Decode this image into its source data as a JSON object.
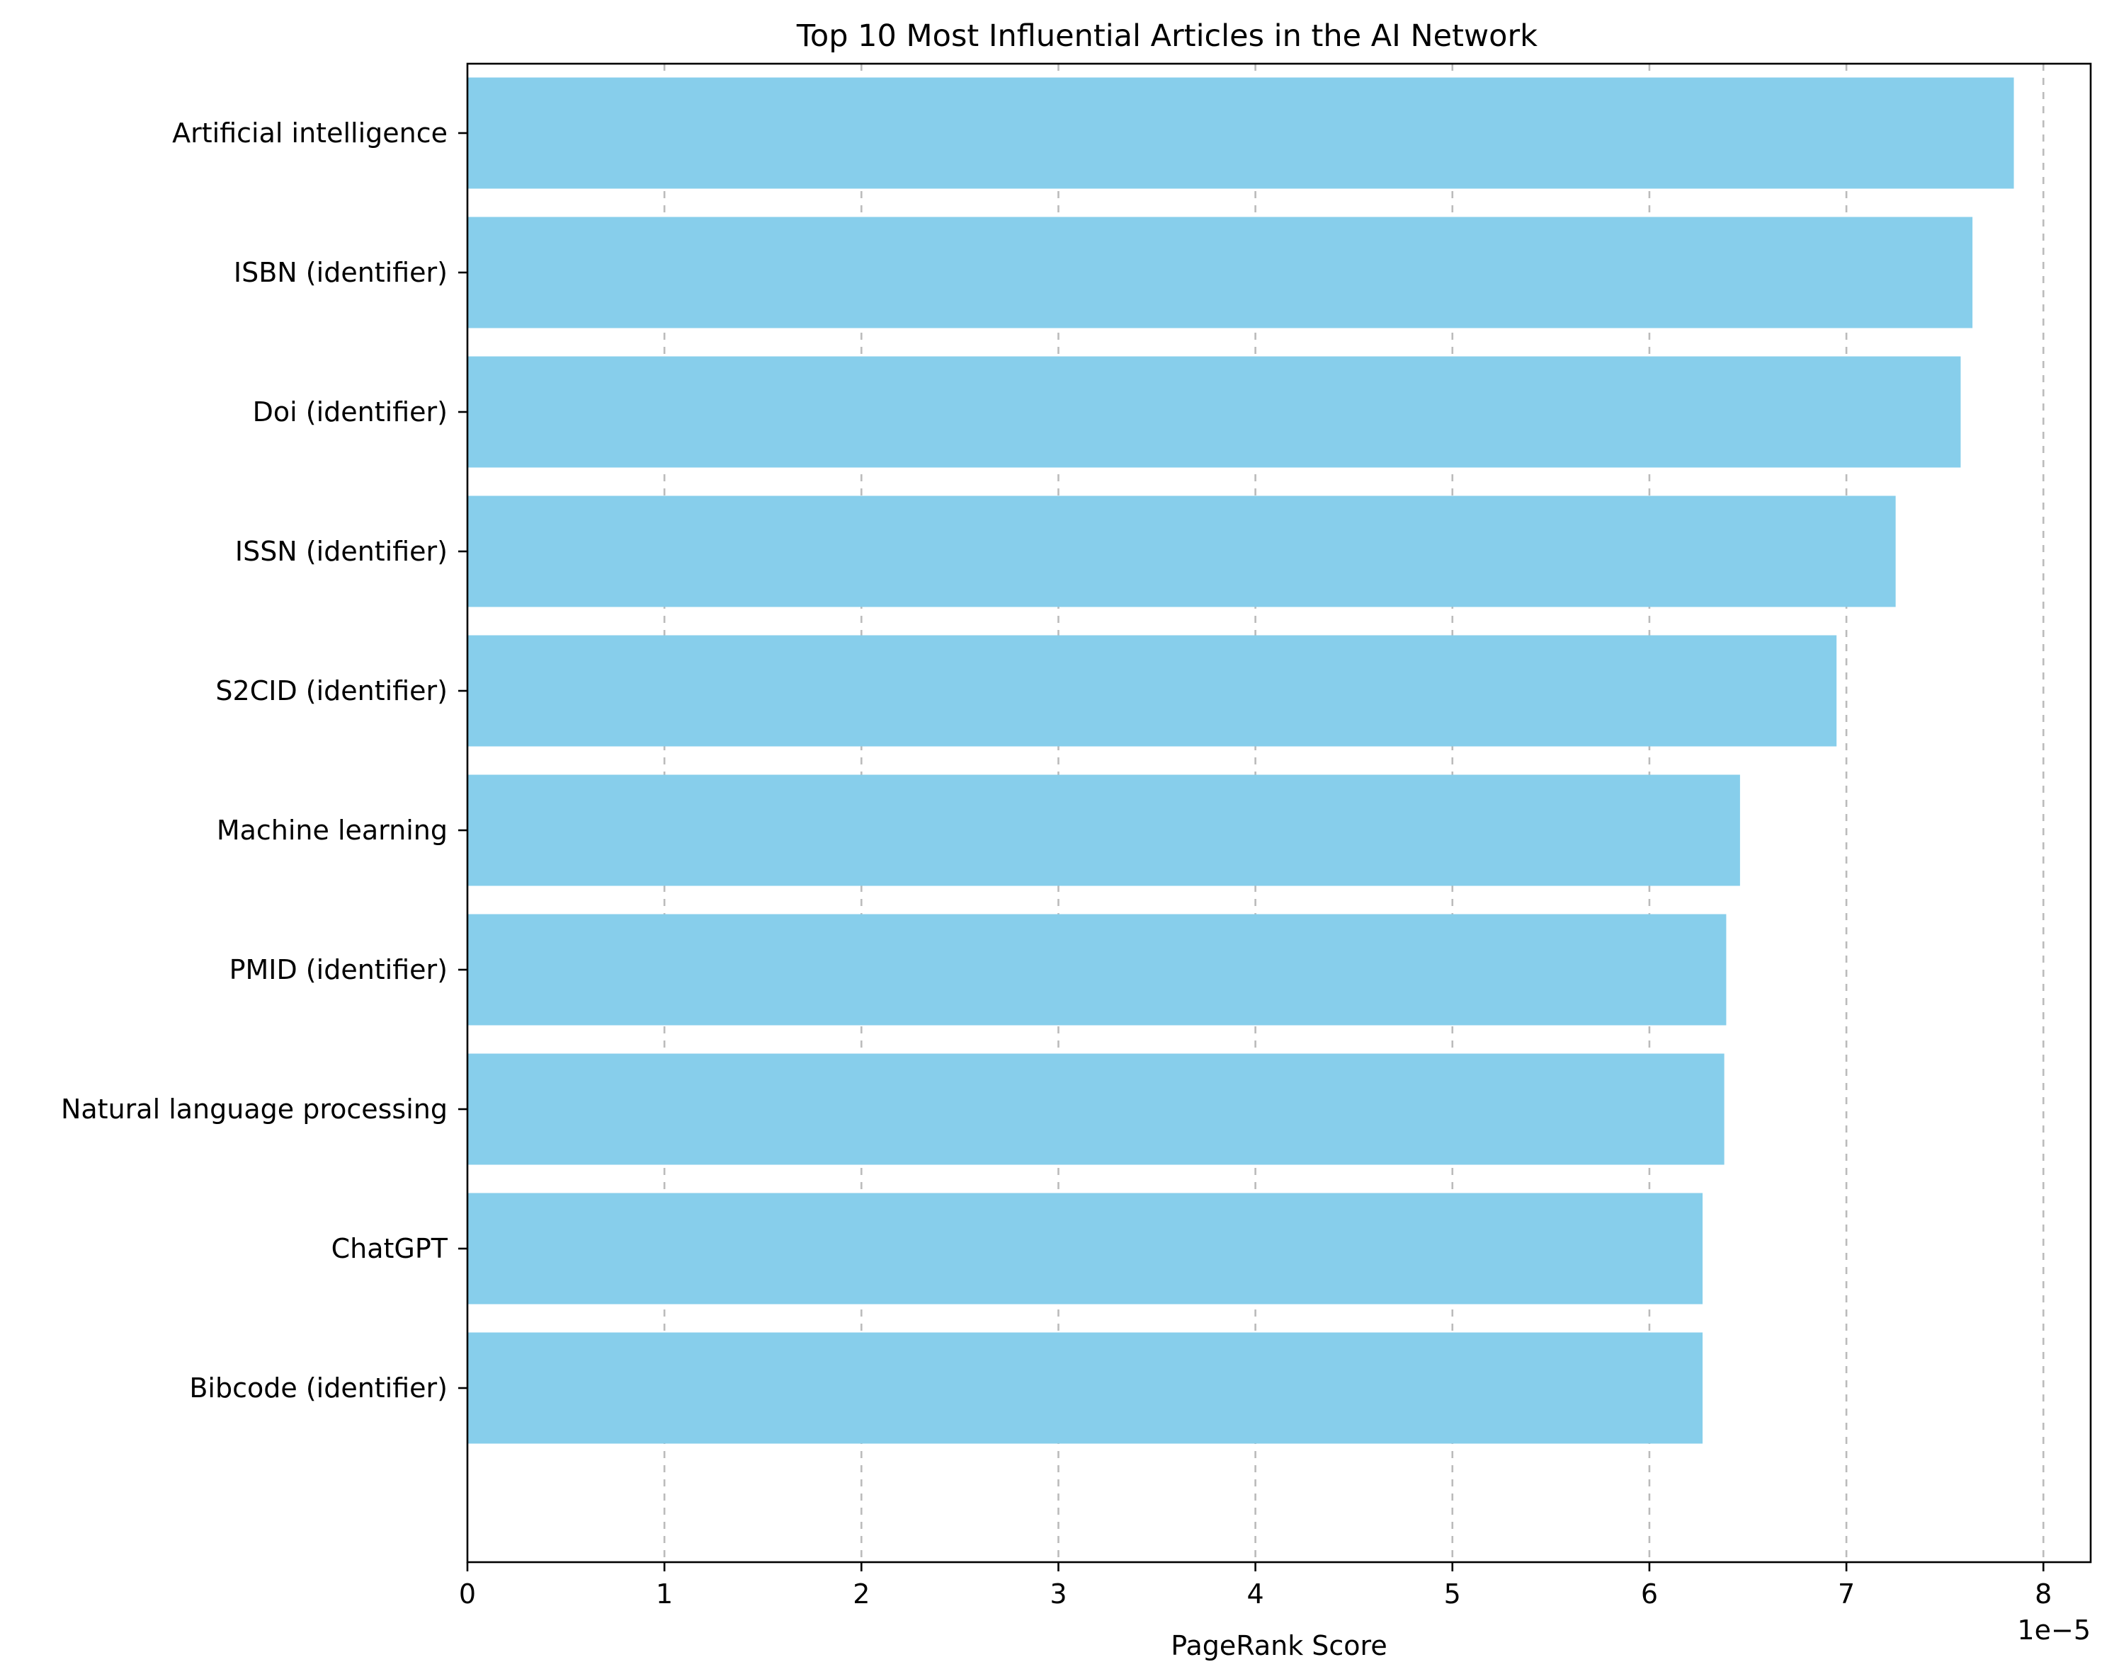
{
  "chart_data": {
    "type": "bar",
    "orientation": "horizontal",
    "title": "Top 10 Most Influential Articles in the AI Network",
    "xlabel": "PageRank Score",
    "ylabel": "",
    "offset_text": "1e−5",
    "categories": [
      "Artificial intelligence",
      "ISBN (identifier)",
      "Doi (identifier)",
      "ISSN (identifier)",
      "S2CID (identifier)",
      "Machine learning",
      "PMID (identifier)",
      "Natural language processing",
      "ChatGPT",
      "Bibcode (identifier)"
    ],
    "values": [
      7.85e-05,
      7.64e-05,
      7.58e-05,
      7.25e-05,
      6.95e-05,
      6.46e-05,
      6.39e-05,
      6.38e-05,
      6.27e-05,
      6.27e-05
    ],
    "xticks": [
      0,
      1,
      2,
      3,
      4,
      5,
      6,
      7,
      8
    ],
    "xtick_labels": [
      "0",
      "1",
      "2",
      "3",
      "4",
      "5",
      "6",
      "7",
      "8"
    ],
    "xlim": [
      0,
      8.24e-05
    ],
    "grid": "x-axis, dashed",
    "legend": "none",
    "bar_color": "#87CEEB"
  }
}
